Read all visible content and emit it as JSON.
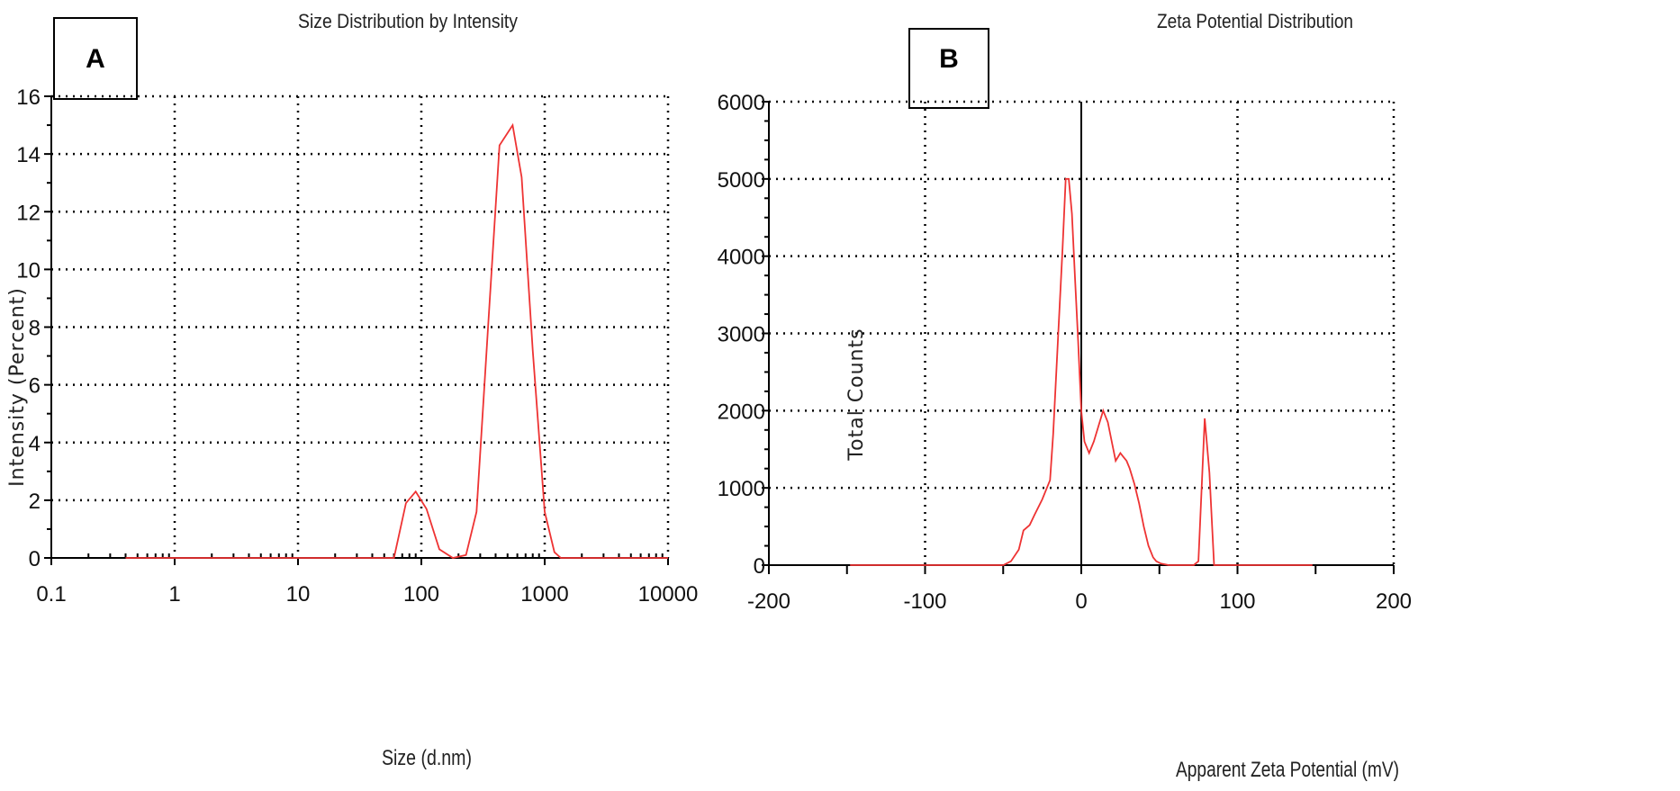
{
  "chart_data": [
    {
      "panel": "A",
      "type": "line",
      "title": "Size Distribution by Intensity",
      "xlabel": "Size (d.nm)",
      "ylabel": "Intensity (Percent)",
      "xscale": "log",
      "xlim": [
        0.1,
        10000
      ],
      "ylim": [
        0,
        16
      ],
      "xticks": [
        0.1,
        1,
        10,
        100,
        1000,
        10000
      ],
      "xtick_labels": [
        "0.1",
        "1",
        "10",
        "100",
        "1000",
        "10000"
      ],
      "yticks": [
        0,
        2,
        4,
        6,
        8,
        10,
        12,
        14,
        16
      ],
      "ytick_labels": [
        "0",
        "2",
        "4",
        "6",
        "8",
        "10",
        "12",
        "14",
        "16"
      ],
      "grid": true,
      "series_color": "#ee3333",
      "x": [
        0.4,
        10,
        60,
        75,
        90,
        110,
        140,
        180,
        230,
        280,
        350,
        430,
        550,
        650,
        800,
        1000,
        1200,
        1350,
        2000,
        10000
      ],
      "y": [
        0,
        0,
        0,
        1.9,
        2.3,
        1.7,
        0.3,
        0,
        0.1,
        1.6,
        8.2,
        14.3,
        15,
        13.2,
        7.2,
        1.6,
        0.2,
        0,
        0,
        0
      ]
    },
    {
      "panel": "B",
      "type": "line",
      "title": "Zeta Potential Distribution",
      "xlabel": "Apparent Zeta Potential (mV)",
      "ylabel": "Total Counts",
      "xlim": [
        -200,
        200
      ],
      "ylim": [
        0,
        6000
      ],
      "xticks": [
        -200,
        -100,
        0,
        100,
        200
      ],
      "xtick_labels": [
        "-200",
        "-100",
        "0",
        "100",
        "200"
      ],
      "yticks": [
        0,
        1000,
        2000,
        3000,
        4000,
        5000,
        6000
      ],
      "ytick_labels": [
        "0",
        "1000",
        "2000",
        "3000",
        "4000",
        "5000",
        "6000"
      ],
      "grid": true,
      "series_color": "#ee3333",
      "x": [
        -148,
        -50,
        -45,
        -40,
        -37,
        -33,
        -30,
        -25,
        -20,
        -18,
        -15,
        -12,
        -10,
        -8,
        -6,
        -4,
        -2,
        0,
        2,
        5,
        8,
        11,
        14,
        17,
        20,
        22,
        25,
        27,
        29,
        31,
        34,
        37,
        40,
        43,
        46,
        48,
        51,
        56,
        60,
        66,
        72,
        75,
        79,
        82,
        85,
        90,
        148
      ],
      "y": [
        0,
        0,
        50,
        200,
        450,
        520,
        650,
        850,
        1100,
        1700,
        2900,
        4100,
        5000,
        5000,
        4550,
        3700,
        2900,
        2000,
        1600,
        1450,
        1600,
        1800,
        2000,
        1850,
        1550,
        1350,
        1450,
        1400,
        1350,
        1250,
        1050,
        800,
        500,
        250,
        100,
        50,
        20,
        0,
        0,
        0,
        0,
        50,
        1900,
        1200,
        0,
        0,
        0
      ]
    }
  ]
}
